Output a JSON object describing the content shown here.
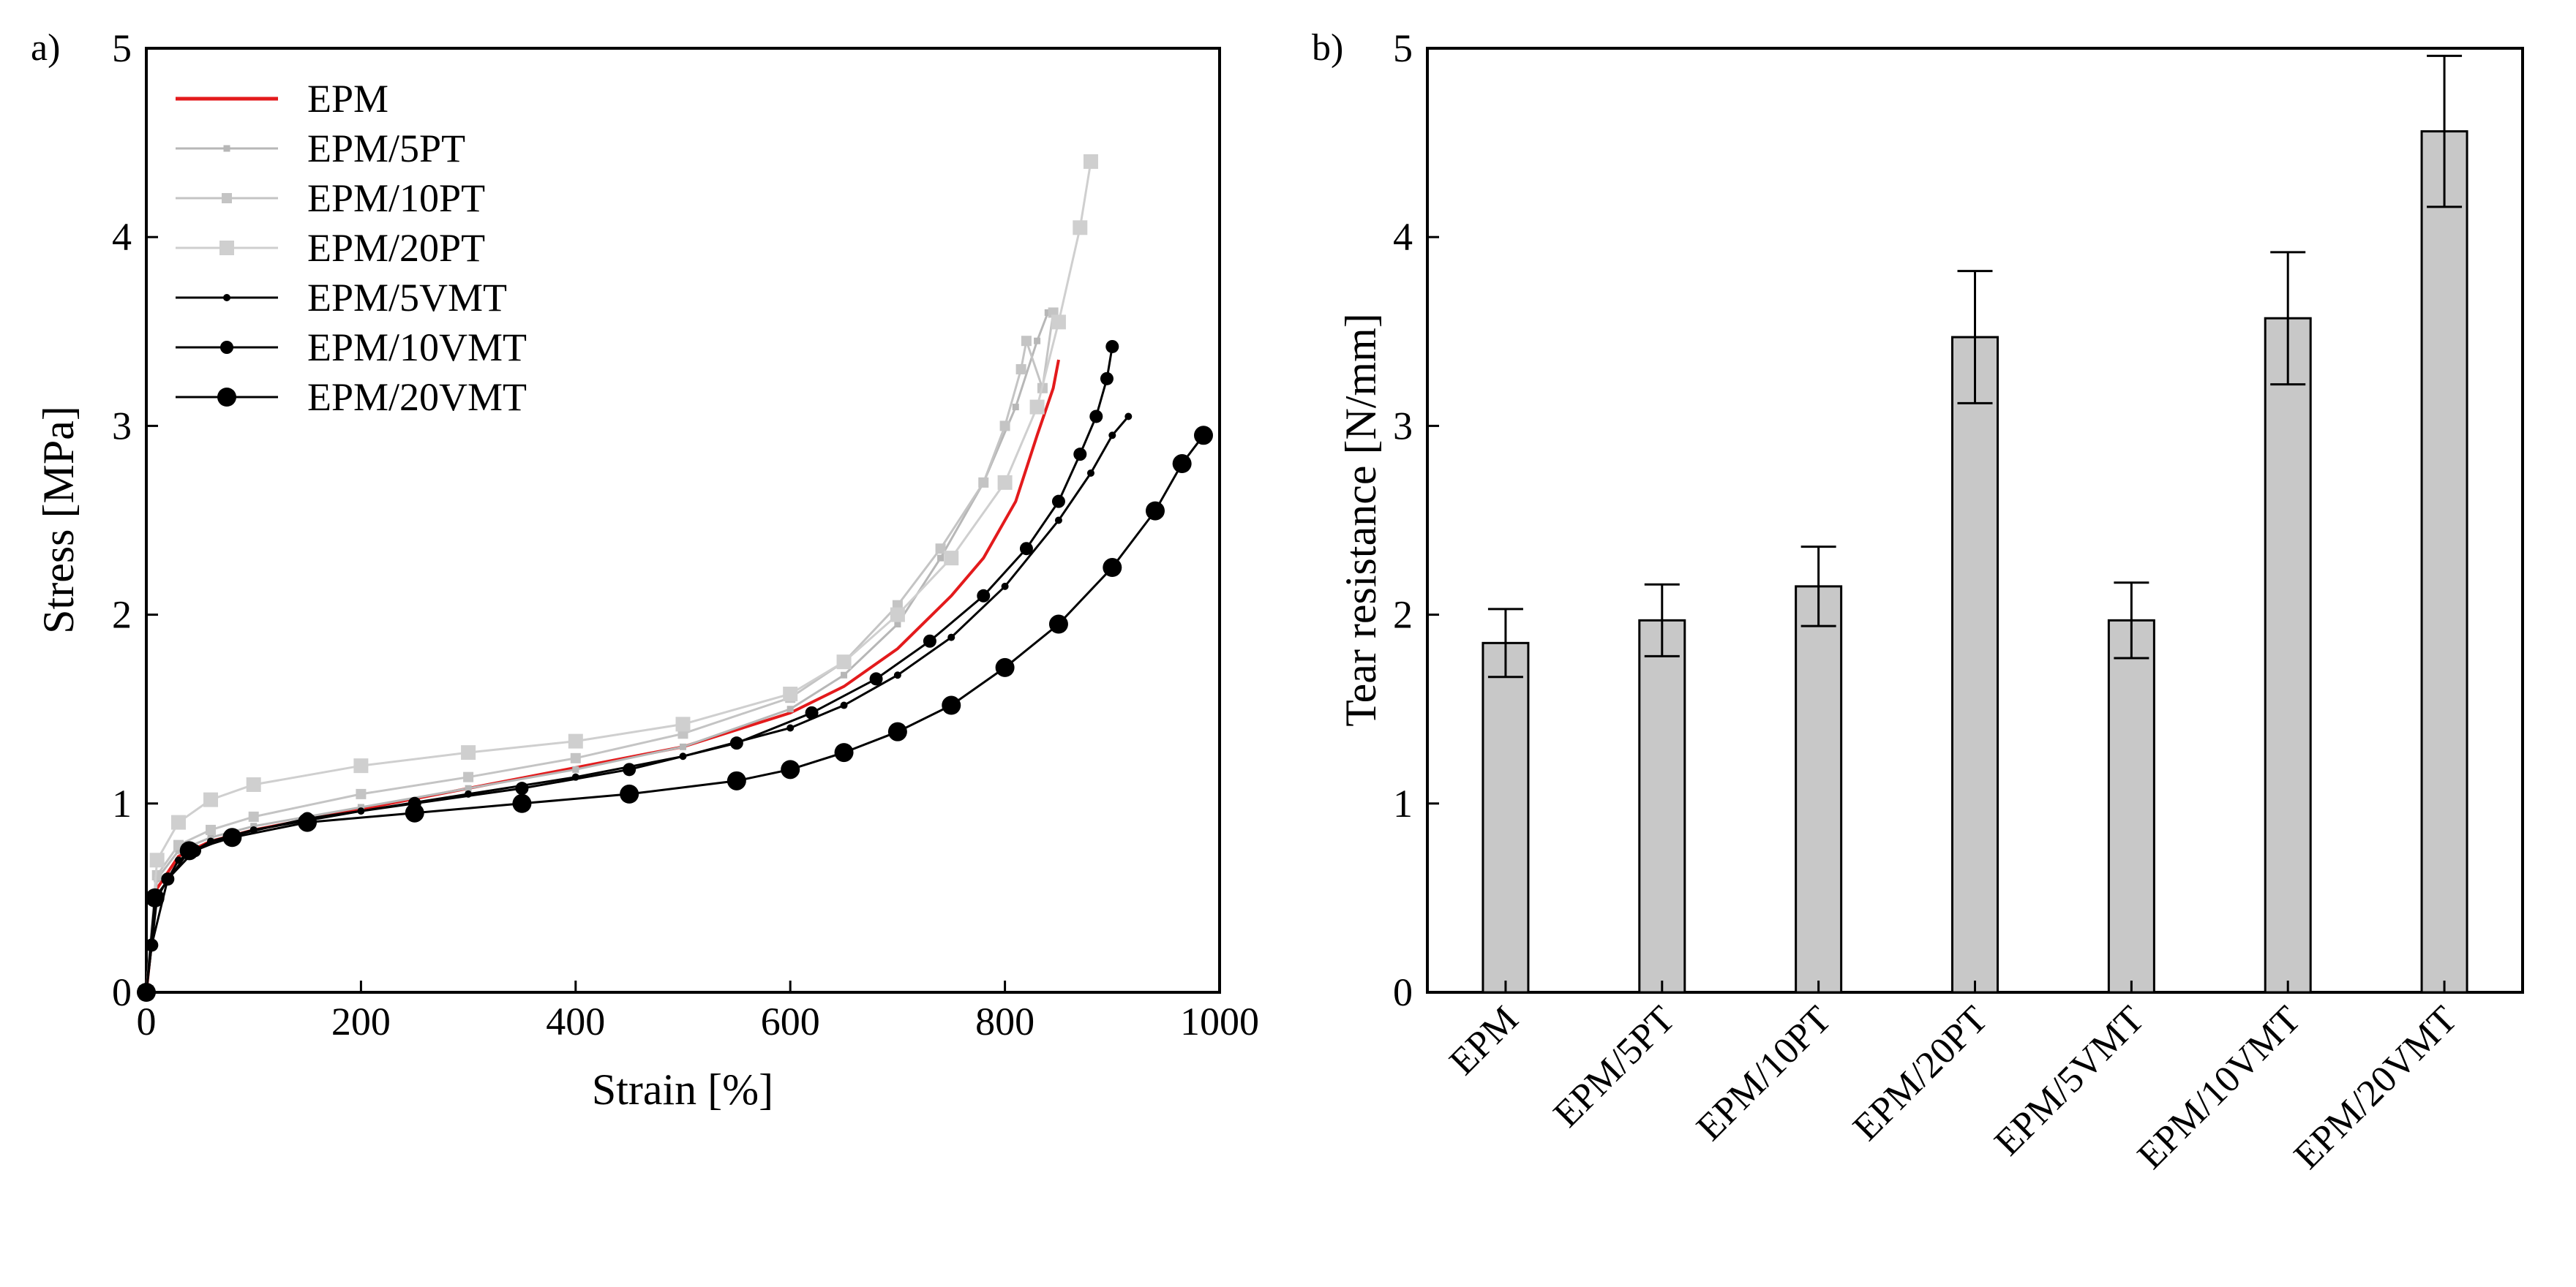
{
  "figure": {
    "panel_a_label": "a)",
    "panel_b_label": "b)"
  },
  "chart_data": [
    {
      "type": "line",
      "panel": "a)",
      "xlabel": "Strain [%]",
      "ylabel": "Stress [MPa]",
      "xlim": [
        0,
        1000
      ],
      "ylim": [
        0,
        5
      ],
      "xticks": [
        "0",
        "200",
        "400",
        "600",
        "800",
        "1000"
      ],
      "yticks": [
        "0",
        "1",
        "2",
        "3",
        "4",
        "5"
      ],
      "grid": false,
      "legend_position": "top-left",
      "series": [
        {
          "name": "EPM",
          "color": "#e31a1c",
          "marker": "none",
          "x": [
            0,
            10,
            30,
            60,
            100,
            200,
            300,
            400,
            500,
            600,
            650,
            700,
            750,
            780,
            810,
            830,
            845,
            850
          ],
          "y": [
            0,
            0.55,
            0.72,
            0.8,
            0.86,
            0.97,
            1.08,
            1.19,
            1.3,
            1.48,
            1.62,
            1.82,
            2.1,
            2.3,
            2.6,
            2.95,
            3.2,
            3.35
          ]
        },
        {
          "name": "EPM/5PT",
          "color": "#b7b7b7",
          "marker": "small-square",
          "x": [
            0,
            10,
            30,
            60,
            100,
            200,
            300,
            400,
            500,
            600,
            650,
            700,
            740,
            780,
            810,
            830,
            840
          ],
          "y": [
            0,
            0.6,
            0.75,
            0.82,
            0.88,
            0.98,
            1.08,
            1.18,
            1.3,
            1.5,
            1.68,
            1.95,
            2.3,
            2.7,
            3.1,
            3.45,
            3.6
          ]
        },
        {
          "name": "EPM/10PT",
          "color": "#c4c4c4",
          "marker": "medium-square",
          "x": [
            0,
            10,
            30,
            60,
            100,
            200,
            300,
            400,
            500,
            600,
            650,
            700,
            740,
            780,
            800,
            815,
            820,
            835,
            845
          ],
          "y": [
            0,
            0.62,
            0.78,
            0.86,
            0.93,
            1.05,
            1.14,
            1.24,
            1.37,
            1.56,
            1.75,
            2.05,
            2.35,
            2.7,
            3.0,
            3.3,
            3.45,
            3.2,
            3.6
          ]
        },
        {
          "name": "EPM/20PT",
          "color": "#cfcfcf",
          "marker": "large-square",
          "x": [
            0,
            10,
            30,
            60,
            100,
            200,
            300,
            400,
            500,
            600,
            650,
            700,
            750,
            800,
            830,
            850,
            870,
            880
          ],
          "y": [
            0,
            0.7,
            0.9,
            1.02,
            1.1,
            1.2,
            1.27,
            1.33,
            1.42,
            1.58,
            1.75,
            2.0,
            2.3,
            2.7,
            3.1,
            3.55,
            4.05,
            4.4
          ]
        },
        {
          "name": "EPM/5VMT",
          "color": "#000000",
          "marker": "small-circle",
          "x": [
            0,
            10,
            30,
            60,
            100,
            200,
            300,
            400,
            500,
            600,
            650,
            700,
            750,
            800,
            850,
            880,
            900,
            915
          ],
          "y": [
            0,
            0.5,
            0.7,
            0.8,
            0.86,
            0.96,
            1.05,
            1.14,
            1.25,
            1.4,
            1.52,
            1.68,
            1.88,
            2.15,
            2.5,
            2.75,
            2.95,
            3.05
          ]
        },
        {
          "name": "EPM/10VMT",
          "color": "#000000",
          "marker": "medium-circle",
          "x": [
            0,
            5,
            20,
            45,
            80,
            150,
            250,
            350,
            450,
            550,
            620,
            680,
            730,
            780,
            820,
            850,
            870,
            885,
            895,
            900
          ],
          "y": [
            0,
            0.25,
            0.6,
            0.75,
            0.83,
            0.92,
            1.0,
            1.08,
            1.18,
            1.32,
            1.48,
            1.66,
            1.86,
            2.1,
            2.35,
            2.6,
            2.85,
            3.05,
            3.25,
            3.42
          ]
        },
        {
          "name": "EPM/20VMT",
          "color": "#000000",
          "marker": "large-circle",
          "x": [
            0,
            8,
            40,
            80,
            150,
            250,
            350,
            450,
            550,
            600,
            650,
            700,
            750,
            800,
            850,
            900,
            940,
            965,
            985
          ],
          "y": [
            0,
            0.5,
            0.75,
            0.82,
            0.9,
            0.95,
            1.0,
            1.05,
            1.12,
            1.18,
            1.27,
            1.38,
            1.52,
            1.72,
            1.95,
            2.25,
            2.55,
            2.8,
            2.95
          ]
        }
      ]
    },
    {
      "type": "bar",
      "panel": "b)",
      "xlabel": "",
      "ylabel": "Tear resistance [N/mm]",
      "ylim": [
        0,
        5
      ],
      "yticks": [
        "0",
        "1",
        "2",
        "3",
        "4",
        "5"
      ],
      "grid": false,
      "bar_color": "#c8c8c8",
      "categories": [
        "EPM",
        "EPM/5PT",
        "EPM/10PT",
        "EPM/20PT",
        "EPM/5VMT",
        "EPM/10VMT",
        "EPM/20VMT"
      ],
      "values": [
        1.85,
        1.97,
        2.15,
        3.47,
        1.97,
        3.57,
        4.56
      ],
      "errors": [
        0.18,
        0.19,
        0.21,
        0.35,
        0.2,
        0.35,
        0.4
      ]
    }
  ]
}
